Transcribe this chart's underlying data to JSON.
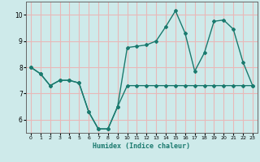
{
  "xlabel": "Humidex (Indice chaleur)",
  "background_color": "#ceeaea",
  "line_color": "#1a7a6e",
  "grid_color": "#e8b8b8",
  "xlim": [
    -0.5,
    23.5
  ],
  "ylim": [
    5.5,
    10.5
  ],
  "yticks": [
    6,
    7,
    8,
    9,
    10
  ],
  "xticks": [
    0,
    1,
    2,
    3,
    4,
    5,
    6,
    7,
    8,
    9,
    10,
    11,
    12,
    13,
    14,
    15,
    16,
    17,
    18,
    19,
    20,
    21,
    22,
    23
  ],
  "series1_x": [
    0,
    1,
    2,
    3,
    4,
    5,
    6,
    7,
    8,
    9,
    10,
    11,
    12,
    13,
    14,
    15,
    16,
    17,
    18,
    19,
    20,
    21,
    22,
    23
  ],
  "series1_y": [
    8.0,
    7.75,
    7.3,
    7.5,
    7.5,
    7.4,
    6.3,
    5.65,
    5.65,
    6.5,
    7.3,
    7.3,
    7.3,
    7.3,
    7.3,
    7.3,
    7.3,
    7.3,
    7.3,
    7.3,
    7.3,
    7.3,
    7.3,
    7.3
  ],
  "series2_x": [
    0,
    1,
    2,
    3,
    4,
    5,
    6,
    7,
    8,
    9,
    10,
    11,
    12,
    13,
    14,
    15,
    16,
    17,
    18,
    19,
    20,
    21,
    22,
    23
  ],
  "series2_y": [
    8.0,
    7.75,
    7.3,
    7.5,
    7.5,
    7.4,
    6.3,
    5.65,
    5.65,
    6.5,
    8.75,
    8.8,
    8.85,
    9.0,
    9.55,
    10.15,
    9.3,
    7.85,
    8.55,
    9.75,
    9.8,
    9.45,
    8.2,
    7.3
  ],
  "marker": "D",
  "markersize": 2.0,
  "linewidth": 1.0
}
